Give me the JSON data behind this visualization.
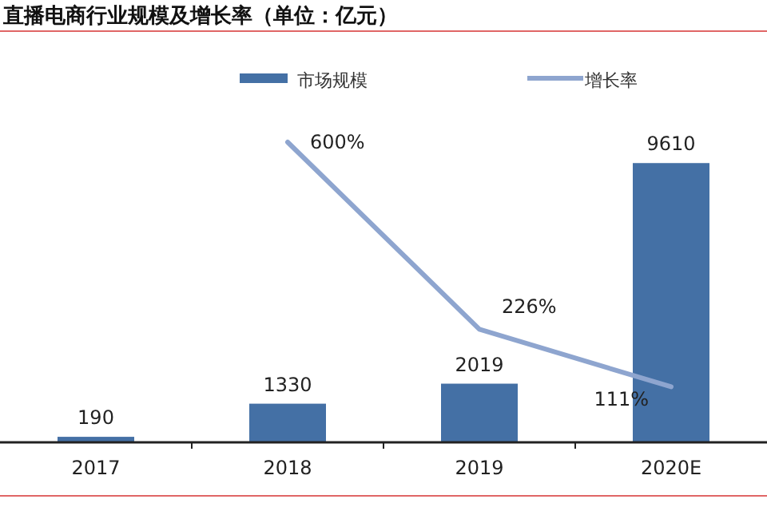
{
  "chart_data": {
    "type": "bar",
    "title": "直播电商行业规模及增长率（单位：亿元）",
    "categories": [
      "2017",
      "2018",
      "2019",
      "2020E"
    ],
    "legend": "top",
    "series": [
      {
        "name": "市场规模",
        "color": "#4470a5",
        "values": [
          190,
          1330,
          2019,
          9610
        ],
        "value_labels": [
          "190",
          "1330",
          "2019",
          "9610"
        ]
      },
      {
        "name": "增长率",
        "type": "line",
        "axis": "y2",
        "color": "#8ea5cf",
        "values": [
          null,
          600,
          226,
          111
        ],
        "value_labels": [
          null,
          "600%",
          "226%",
          "111%"
        ]
      }
    ]
  }
}
